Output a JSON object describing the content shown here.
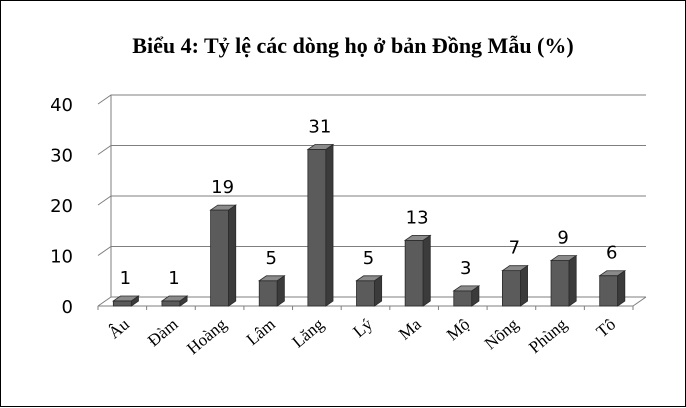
{
  "chart_data": {
    "type": "bar",
    "title": "Biểu 4: Tỷ lệ các dòng họ ở bản Đồng Mẫu (%)",
    "categories": [
      "Âu",
      "Đàm",
      "Hoàng",
      "Lâm",
      "Lăng",
      "Lý",
      "Ma",
      "Mộ",
      "Nông",
      "Phùng",
      "Tô"
    ],
    "values": [
      1,
      1,
      19,
      5,
      31,
      5,
      13,
      3,
      7,
      9,
      6
    ],
    "data_labels": [
      "1",
      "1",
      "19",
      "5",
      "31",
      "5",
      "13",
      "3",
      "7",
      "9",
      "6"
    ],
    "ylim": [
      0,
      40
    ],
    "yticks": [
      0,
      10,
      20,
      30,
      40
    ],
    "xlabel": "",
    "ylabel": "",
    "grid": true,
    "legend": "none",
    "three_d": true,
    "bar_color": "#555555"
  }
}
